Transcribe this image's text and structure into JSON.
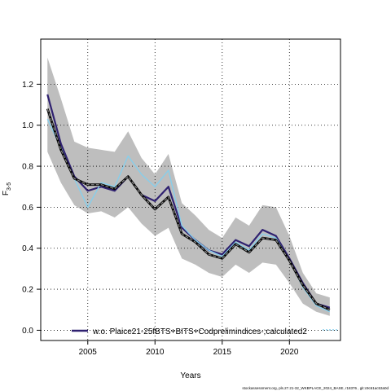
{
  "chart_data": {
    "type": "line",
    "title": "",
    "xlabel": "Years",
    "ylabel": "F",
    "ylabel_subscript": "3-5",
    "xlim": [
      2001.5,
      2023.8
    ],
    "ylim": [
      -0.05,
      1.42
    ],
    "xticks": [
      2005,
      2010,
      2015,
      2020
    ],
    "yticks": [
      0.0,
      0.2,
      0.4,
      0.6,
      0.8,
      1.0,
      1.2
    ],
    "ytick_labels": [
      "0.0",
      "0.2",
      "0.4",
      "0.6",
      "0.8",
      "1.0",
      "1.2"
    ],
    "grid": true,
    "legend_position": "bottom",
    "x": [
      2002,
      2003,
      2004,
      2005,
      2006,
      2007,
      2008,
      2009,
      2010,
      2011,
      2012,
      2013,
      2014,
      2015,
      2016,
      2017,
      2018,
      2019,
      2020,
      2021,
      2022,
      2023
    ],
    "confidence_band": {
      "color": "#bebebe",
      "upper": [
        1.33,
        1.13,
        0.92,
        0.89,
        0.88,
        0.87,
        0.97,
        0.84,
        0.76,
        0.86,
        0.62,
        0.56,
        0.49,
        0.45,
        0.55,
        0.51,
        0.61,
        0.6,
        0.46,
        0.28,
        0.18,
        0.16
      ],
      "lower": [
        0.87,
        0.72,
        0.61,
        0.57,
        0.58,
        0.55,
        0.6,
        0.52,
        0.46,
        0.5,
        0.35,
        0.32,
        0.28,
        0.26,
        0.32,
        0.28,
        0.33,
        0.32,
        0.23,
        0.13,
        0.09,
        0.07
      ]
    },
    "series": [
      {
        "name": "w.o. Plaice21-25fBTS+BITS+Codprelimindices-;calculated2",
        "color": "#2f2170",
        "style": "solid",
        "width": 2.2,
        "values": [
          1.15,
          0.91,
          0.75,
          0.68,
          0.7,
          0.68,
          0.75,
          0.66,
          0.63,
          0.7,
          0.5,
          0.44,
          0.39,
          0.37,
          0.44,
          0.41,
          0.49,
          0.46,
          0.35,
          0.23,
          0.13,
          0.11
        ]
      },
      {
        "name": "",
        "color": "#87ceeb",
        "style": "solid",
        "width": 1.4,
        "values": [
          1.03,
          0.89,
          0.74,
          0.6,
          0.72,
          0.7,
          0.85,
          0.76,
          0.7,
          0.78,
          0.51,
          0.44,
          0.39,
          0.36,
          0.43,
          0.39,
          0.47,
          0.45,
          0.34,
          0.21,
          0.12,
          0.09
        ]
      },
      {
        "name": "",
        "color": "#000000",
        "style": "solid",
        "width": 2.8,
        "values": [
          1.08,
          0.88,
          0.74,
          0.71,
          0.71,
          0.69,
          0.75,
          0.66,
          0.59,
          0.65,
          0.47,
          0.43,
          0.37,
          0.35,
          0.42,
          0.38,
          0.45,
          0.44,
          0.34,
          0.22,
          0.13,
          0.1
        ]
      },
      {
        "name": "",
        "color": "#888888",
        "style": "dashed",
        "width": 1.2,
        "values": [
          1.08,
          0.88,
          0.74,
          0.71,
          0.71,
          0.69,
          0.75,
          0.66,
          0.59,
          0.65,
          0.47,
          0.43,
          0.37,
          0.35,
          0.42,
          0.38,
          0.45,
          0.44,
          0.34,
          0.22,
          0.13,
          0.1
        ]
      }
    ],
    "legend": {
      "entries": [
        "w.o. Plaice21-25fBTS+BITS+Codprelimindices-;calculated2"
      ],
      "left_line_color": "#2f2170",
      "right_line_color": "#87ceeb"
    }
  },
  "footer": "stockassessment.org, pls.27.21-32_WKBPLACE_2024_BASE, r18376 , git:c9c61ac53a0d"
}
